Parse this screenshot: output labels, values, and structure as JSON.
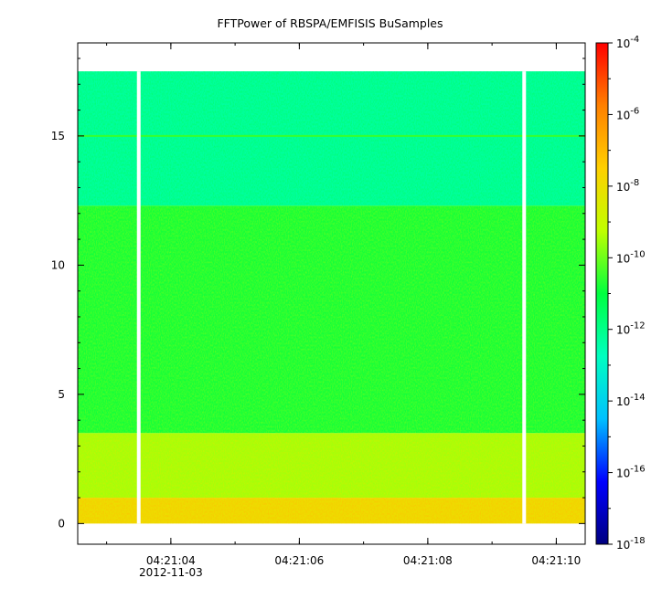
{
  "chart_data": {
    "type": "heatmap",
    "title": "FFTPower of RBSPA/EMFISIS  BuSamples",
    "xlabel": "",
    "ylabel": "",
    "x_range": [
      "04:21:02.55",
      "04:21:10.45"
    ],
    "x_ticks": [
      "04:21:04",
      "04:21:06",
      "04:21:08",
      "04:21:10"
    ],
    "x_date_label": "2012-11-03",
    "y_range": [
      -0.8,
      18.6
    ],
    "y_ticks": [
      0,
      5,
      10,
      15
    ],
    "data_y_range": [
      0,
      17.5
    ],
    "gaps": [
      "04:21:03.5",
      "04:21:09.5"
    ],
    "colorbar": {
      "scale": "log",
      "range": [
        "1e-18",
        "1e-4"
      ],
      "tick_labels": [
        {
          "base": "10",
          "exp": "-4"
        },
        {
          "base": "10",
          "exp": "-6"
        },
        {
          "base": "10",
          "exp": "-8"
        },
        {
          "base": "10",
          "exp": "-10"
        },
        {
          "base": "10",
          "exp": "-12"
        },
        {
          "base": "10",
          "exp": "-14"
        },
        {
          "base": "10",
          "exp": "-16"
        },
        {
          "base": "10",
          "exp": "-18"
        }
      ],
      "colors": [
        "#000080",
        "#0000ff",
        "#00c0ff",
        "#00ffc0",
        "#00ff40",
        "#c0ff00",
        "#ffd000",
        "#ff8000",
        "#ff0000"
      ]
    },
    "bands": [
      {
        "y_range": [
          12.3,
          17.5
        ],
        "log_power": "-12.3"
      },
      {
        "y_range": [
          3.5,
          12.3
        ],
        "log_power": "-10.8"
      },
      {
        "y_range": [
          1.0,
          3.5
        ],
        "log_power": "-9.5"
      },
      {
        "y_range": [
          0,
          1.0
        ],
        "log_power": "-8.0"
      }
    ],
    "line_feature": {
      "y": 15.0,
      "log_power": "-10.5"
    }
  }
}
